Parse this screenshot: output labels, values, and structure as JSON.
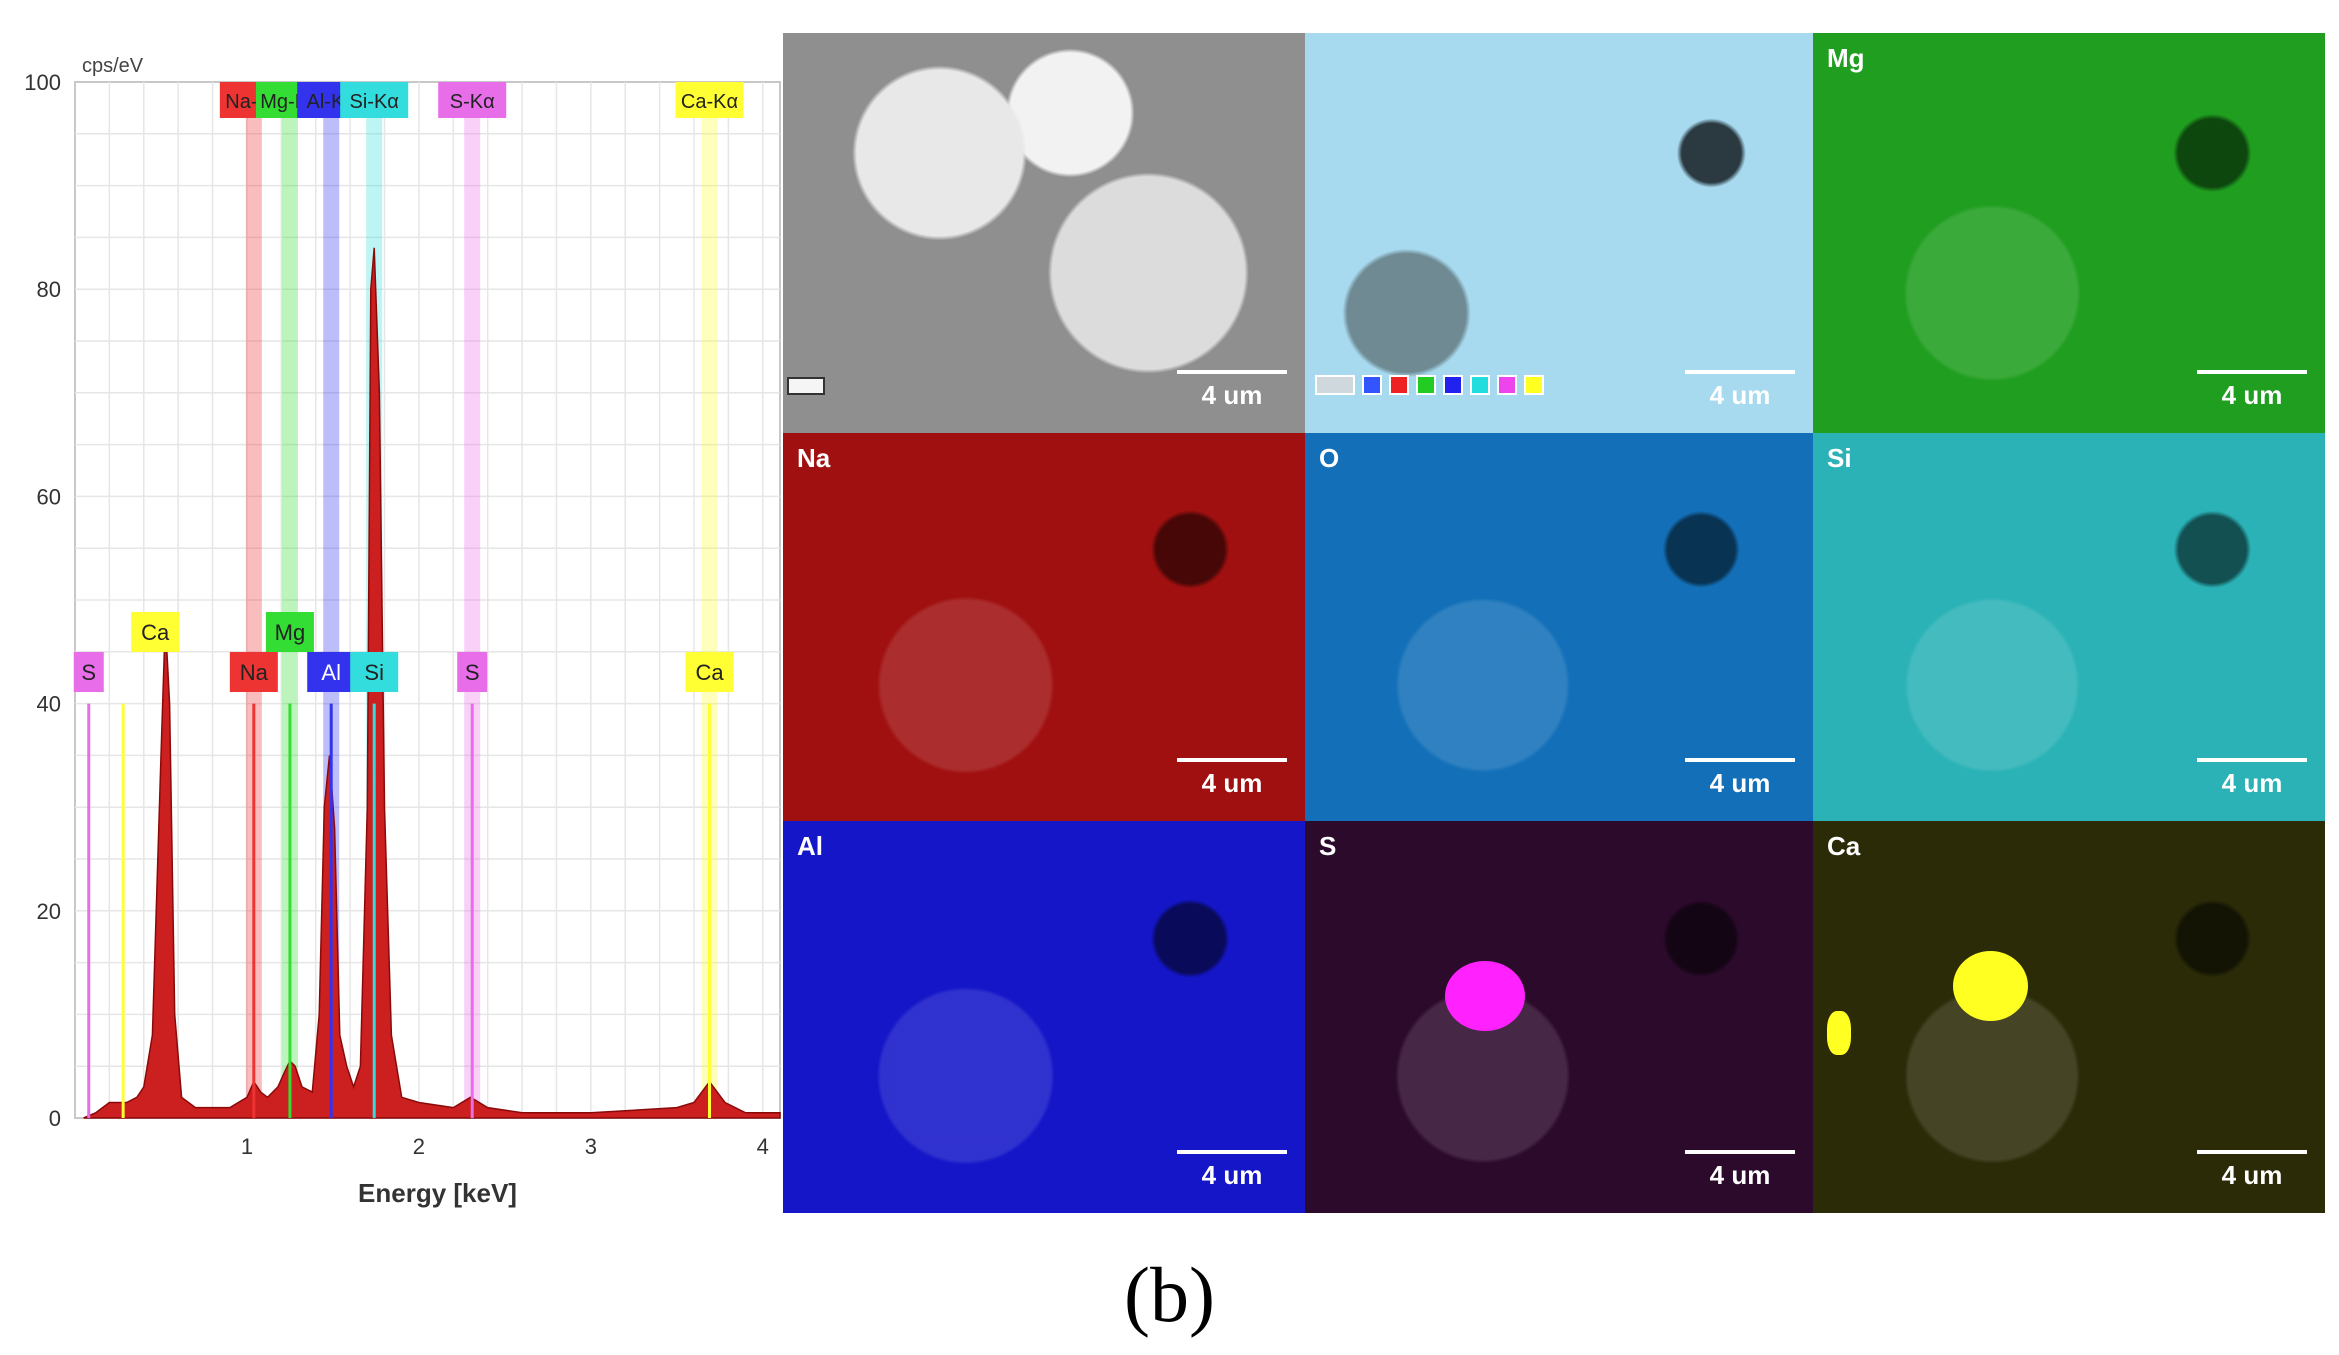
{
  "chart_data": {
    "type": "area",
    "ylabel": "cps/eV",
    "xlabel": "Energy [keV]",
    "xlim": [
      0,
      4.1
    ],
    "ylim": [
      0,
      100
    ],
    "xticks": [
      1,
      2,
      3,
      4
    ],
    "yticks": [
      0,
      20,
      40,
      60,
      80,
      100
    ],
    "grid": true,
    "series": [
      {
        "color": "#cc1f1f",
        "x": [
          0.05,
          0.12,
          0.2,
          0.3,
          0.36,
          0.4,
          0.45,
          0.5,
          0.525,
          0.55,
          0.58,
          0.62,
          0.7,
          0.8,
          0.9,
          1.0,
          1.04,
          1.08,
          1.12,
          1.18,
          1.22,
          1.25,
          1.28,
          1.32,
          1.38,
          1.42,
          1.45,
          1.48,
          1.51,
          1.54,
          1.58,
          1.62,
          1.66,
          1.7,
          1.72,
          1.74,
          1.77,
          1.8,
          1.84,
          1.9,
          2.0,
          2.2,
          2.3,
          2.4,
          2.6,
          3.0,
          3.5,
          3.6,
          3.69,
          3.78,
          3.9,
          4.1
        ],
        "y": [
          0,
          0.5,
          1.5,
          1.5,
          2,
          3,
          8,
          35,
          48,
          40,
          10,
          2,
          1,
          1,
          1,
          2,
          3.5,
          2.5,
          2,
          3,
          4.5,
          5.5,
          5,
          3,
          2.5,
          10,
          30,
          35,
          28,
          8,
          5,
          3,
          5,
          30,
          80,
          84,
          70,
          30,
          8,
          2,
          1.5,
          1,
          2,
          1,
          0.5,
          0.5,
          1,
          1.5,
          3.5,
          1.5,
          0.5,
          0.5
        ]
      }
    ],
    "peak_labels": [
      {
        "label": "S",
        "energy": 0.08,
        "color": "#e86de8"
      },
      {
        "label": "Ca",
        "energy": 0.28,
        "color": "#ffff33"
      },
      {
        "label": "Na",
        "energy": 1.04,
        "color": "#ee3333"
      },
      {
        "label": "Mg",
        "energy": 1.25,
        "color": "#33dd33"
      },
      {
        "label": "Al",
        "energy": 1.49,
        "color": "#3333ee"
      },
      {
        "label": "Si",
        "energy": 1.74,
        "color": "#33dddd"
      },
      {
        "label": "S",
        "energy": 2.31,
        "color": "#e86de8"
      },
      {
        "label": "Ca",
        "energy": 3.69,
        "color": "#ffff33"
      }
    ],
    "line_markers": [
      {
        "label": "Na-Kα",
        "energy": 1.04,
        "color": "#ee3333"
      },
      {
        "label": "Mg-Kα",
        "energy": 1.25,
        "color": "#33dd33"
      },
      {
        "label": "Al-Kα",
        "energy": 1.49,
        "color": "#3333ee"
      },
      {
        "label": "Si-Kα",
        "energy": 1.74,
        "color": "#33dddd"
      },
      {
        "label": "S-Kα",
        "energy": 2.31,
        "color": "#e86de8"
      },
      {
        "label": "Ca-Kα",
        "energy": 3.69,
        "color": "#ffff33"
      }
    ]
  },
  "maps": {
    "scale_text": "4 um",
    "tiles": [
      {
        "label": "",
        "bg": "#bdbdbd",
        "variant": "sem"
      },
      {
        "label": "",
        "bg": "#a7d9ef",
        "variant": "overlay"
      },
      {
        "label": "Mg",
        "bg": "#1f9e1f",
        "variant": "element"
      },
      {
        "label": "Na",
        "bg": "#a01010",
        "variant": "element"
      },
      {
        "label": "O",
        "bg": "#1370b8",
        "variant": "element"
      },
      {
        "label": "Si",
        "bg": "#2ab2b6",
        "variant": "element"
      },
      {
        "label": "Al",
        "bg": "#1416c8",
        "variant": "element"
      },
      {
        "label": "S",
        "bg": "#2c0a2c",
        "variant": "element"
      },
      {
        "label": "Ca",
        "bg": "#2b2b08",
        "variant": "element"
      }
    ],
    "legend_colors": [
      "#3355ff",
      "#ee2222",
      "#22cc22",
      "#2222ee",
      "#22dddd",
      "#ee44ee",
      "#ffff22"
    ]
  },
  "caption": "(b)"
}
